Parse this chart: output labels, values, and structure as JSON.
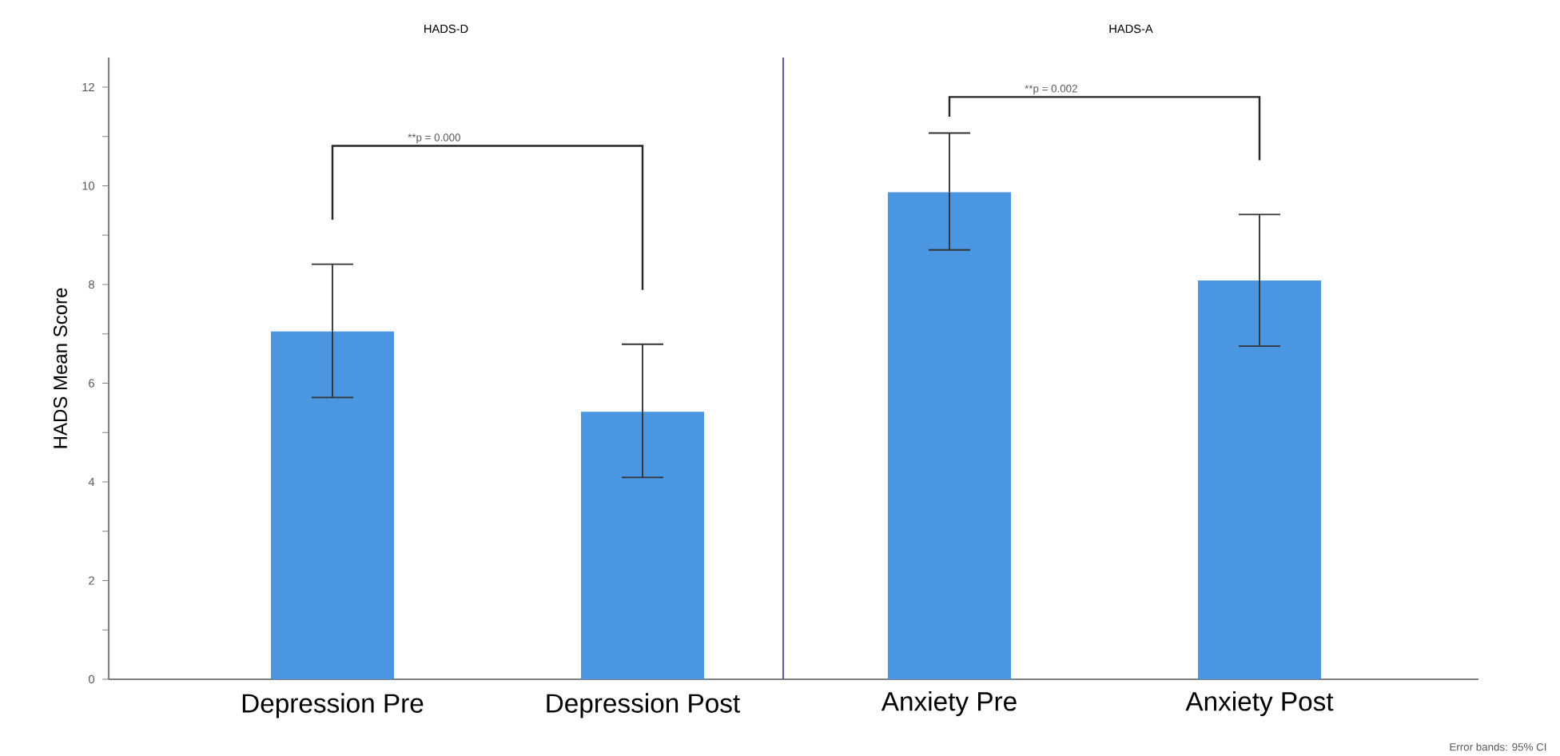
{
  "chart_data": [
    {
      "type": "bar",
      "title": "HADS-D",
      "ylabel": "HADS Mean Score",
      "categories": [
        "Depression Pre",
        "Depression Post"
      ],
      "values": [
        7.05,
        5.42
      ],
      "errors": [
        [
          5.71,
          8.41
        ],
        [
          4.09,
          6.79
        ]
      ],
      "color": "#4a96e0",
      "ylim": [
        0,
        12.6
      ],
      "yticks": [
        0,
        {
          "value": 1,
          "label": null
        },
        2,
        {
          "value": 3,
          "label": null
        },
        4,
        {
          "value": 5,
          "label": null
        },
        6,
        {
          "value": 7,
          "label": null
        },
        8,
        {
          "value": 9,
          "label": null
        },
        10,
        {
          "value": 11,
          "label": null
        },
        12
      ],
      "annotations": [
        "**p = 0.000"
      ]
    },
    {
      "type": "bar",
      "title": "HADS-A",
      "categories": [
        "Anxiety Pre",
        "Anxiety Post"
      ],
      "values": [
        9.87,
        8.08
      ],
      "errors": [
        [
          8.7,
          11.07
        ],
        [
          6.75,
          9.42
        ]
      ],
      "color": "#4a96e0",
      "ylim": [
        0,
        12.6
      ],
      "tick_labels": "x",
      "annotations": [
        "**p = 0.002",
        "Error bands: 95% CI"
      ]
    }
  ]
}
